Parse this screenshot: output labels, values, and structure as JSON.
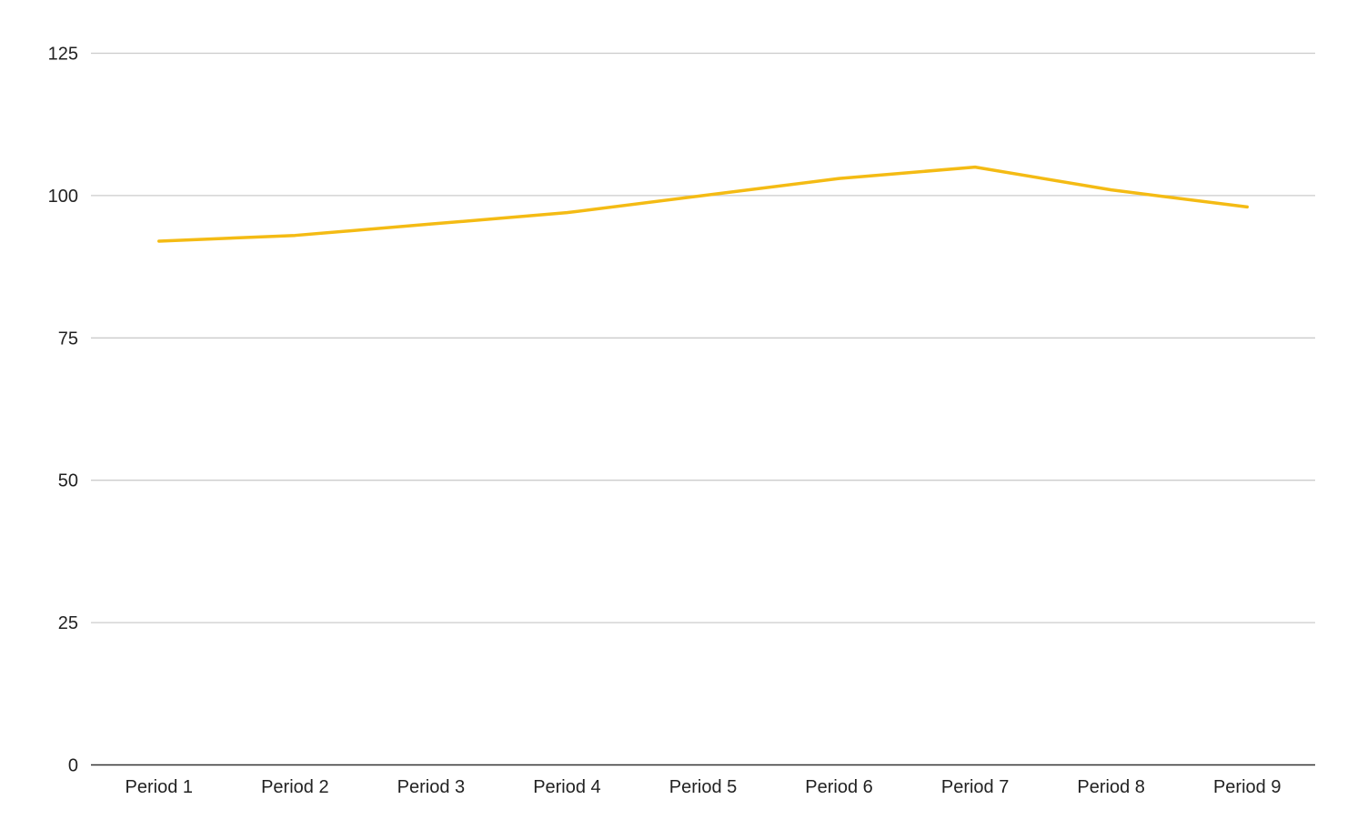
{
  "chart_data": {
    "type": "line",
    "title": "",
    "xlabel": "",
    "ylabel": "",
    "categories": [
      "Period 1",
      "Period 2",
      "Period 3",
      "Period 4",
      "Period 5",
      "Period 6",
      "Period 7",
      "Period 8",
      "Period 9"
    ],
    "series": [
      {
        "color": "#f4bb14",
        "values": [
          92,
          93,
          95,
          97,
          100,
          103,
          105,
          101,
          98
        ]
      }
    ],
    "ylim": [
      0,
      125
    ],
    "yticks": [
      0,
      25,
      50,
      75,
      100,
      125
    ],
    "grid": true,
    "legend": "none"
  }
}
